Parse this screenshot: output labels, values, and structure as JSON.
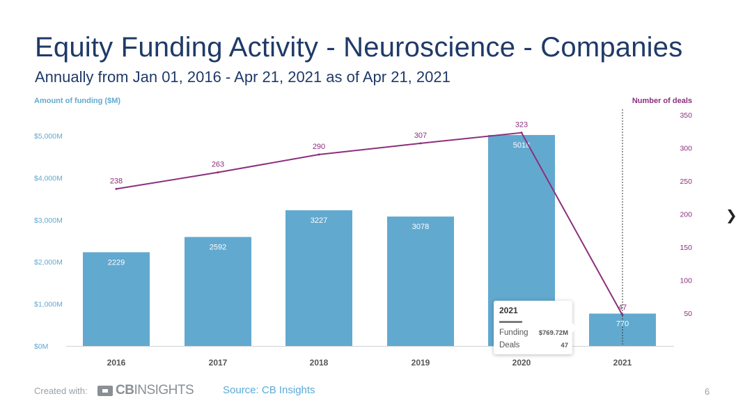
{
  "header": {
    "title": "Equity Funding Activity - Neuroscience - Companies",
    "subtitle": "Annually from Jan 01, 2016 - Apr 21, 2021 as of Apr 21, 2021"
  },
  "chart_data": {
    "type": "bar",
    "categories": [
      "2016",
      "2017",
      "2018",
      "2019",
      "2020",
      "2021"
    ],
    "series": [
      {
        "name": "Amount of funding ($M)",
        "type": "bar",
        "axis": "left",
        "values": [
          2229,
          2592,
          3227,
          3078,
          5018,
          770
        ],
        "data_labels": [
          "2229",
          "2592",
          "3227",
          "3078",
          "5018",
          "770"
        ]
      },
      {
        "name": "Number of deals",
        "type": "line",
        "axis": "right",
        "values": [
          238,
          263,
          290,
          307,
          323,
          47
        ],
        "data_labels": [
          "238",
          "263",
          "290",
          "307",
          "323",
          "47"
        ]
      }
    ],
    "ylabel": "Amount of funding ($M)",
    "y2label": "Number of deals",
    "ylim": [
      0,
      5000
    ],
    "y2lim": [
      0,
      350
    ],
    "y_ticks": [
      0,
      1000,
      2000,
      3000,
      4000,
      5000
    ],
    "y_tick_labels": [
      "$0M",
      "$1,000M",
      "$2,000M",
      "$3,000M",
      "$4,000M",
      "$5,000M"
    ],
    "y2_ticks": [
      50,
      100,
      150,
      200,
      250,
      300,
      350
    ],
    "y2_tick_labels": [
      "50",
      "100",
      "150",
      "200",
      "250",
      "300",
      "350"
    ],
    "grid": false,
    "colors": {
      "bars": "#62a9cf",
      "line": "#8b2f7c",
      "left_axis_text": "#62a9cf",
      "right_axis_text": "#8b2f7c"
    },
    "tooltip": {
      "year": "2021",
      "funding_label": "Funding",
      "funding_value": "$769.72M",
      "deals_label": "Deals",
      "deals_value": "47"
    }
  },
  "footer": {
    "created_with": "Created with:",
    "logo_cb": "CB",
    "logo_insights": "INSIGHTS",
    "source": "Source: CB Insights",
    "page_number": "6"
  },
  "nav": {
    "next_icon": "chevron-right-icon"
  }
}
